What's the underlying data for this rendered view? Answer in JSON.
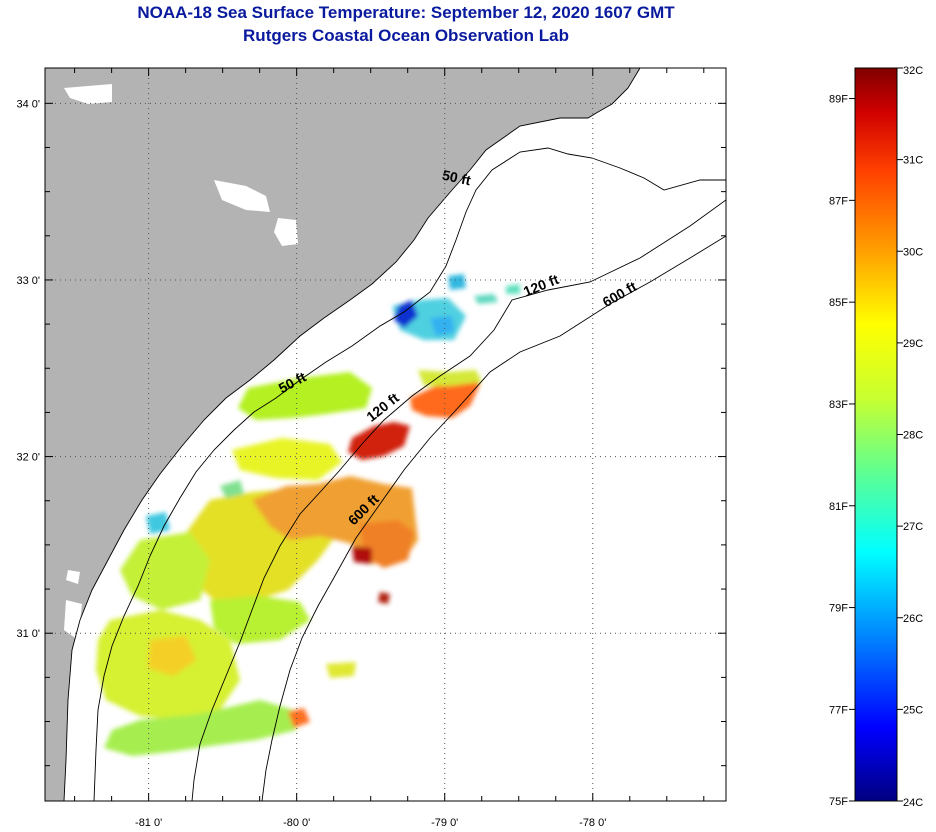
{
  "header": {
    "title_line1": "NOAA-18 Sea Surface Temperature:  September 12, 2020 1607 GMT",
    "title_line2": "Rutgers Coastal Ocean Observation Lab"
  },
  "map": {
    "lon_range": [
      -81.7,
      -77.1
    ],
    "lat_range": [
      30.05,
      34.2
    ],
    "lon_ticks": [
      {
        "value": -81,
        "label": "-81 0'"
      },
      {
        "value": -80,
        "label": "-80 0'"
      },
      {
        "value": -79,
        "label": "-79 0'"
      },
      {
        "value": -78,
        "label": "-78 0'"
      }
    ],
    "lat_ticks": [
      {
        "value": 34,
        "label": "34 0'"
      },
      {
        "value": 33,
        "label": "33 0'"
      },
      {
        "value": 32,
        "label": "32 0'"
      },
      {
        "value": 31,
        "label": "31 0'"
      }
    ],
    "contour_labels": [
      {
        "text": "50 ft",
        "lon": -78.92,
        "lat": 33.58,
        "angle": 12
      },
      {
        "text": "120 ft",
        "lon": -78.35,
        "lat": 32.97,
        "angle": -22
      },
      {
        "text": "600 ft",
        "lon": -77.82,
        "lat": 32.92,
        "angle": -30
      },
      {
        "text": "50 ft",
        "lon": -80.03,
        "lat": 32.42,
        "angle": -28
      },
      {
        "text": "120 ft",
        "lon": -79.42,
        "lat": 32.28,
        "angle": -38
      },
      {
        "text": "600 ft",
        "lon": -79.55,
        "lat": 31.7,
        "angle": -45
      }
    ],
    "colors": {
      "land": "#b3b3b3",
      "ocean": "#ffffff",
      "grid": "#555555"
    }
  },
  "colorbar": {
    "celsius": [
      "32C",
      "31C",
      "30C",
      "29C",
      "28C",
      "27C",
      "26C",
      "25C",
      "24C"
    ],
    "fahrenheit": [
      "89F",
      "87F",
      "85F",
      "83F",
      "81F",
      "79F",
      "77F",
      "75F"
    ],
    "colors": [
      "#000080",
      "#0000ff",
      "#00a0ff",
      "#00ffff",
      "#60ff90",
      "#c8ff30",
      "#ffff00",
      "#ffa000",
      "#ff4000",
      "#d00000",
      "#800000"
    ]
  }
}
